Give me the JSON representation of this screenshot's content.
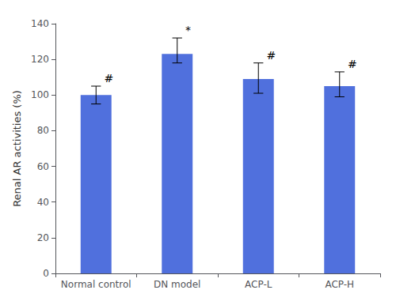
{
  "chart_data": {
    "type": "bar",
    "categories": [
      "Normal control",
      "DN model",
      "ACP-L",
      "ACP-H"
    ],
    "values": [
      100,
      123,
      109,
      105
    ],
    "errors_upper": [
      5,
      9,
      9,
      8
    ],
    "errors_lower": [
      5,
      5,
      8,
      6
    ],
    "annotations": [
      "#",
      "*",
      "#",
      "#"
    ],
    "ylabel": "Renal AR activities (%)",
    "ylim": [
      0,
      140
    ],
    "yticks": [
      0,
      20,
      40,
      60,
      80,
      100,
      120,
      140
    ],
    "grid": false
  }
}
